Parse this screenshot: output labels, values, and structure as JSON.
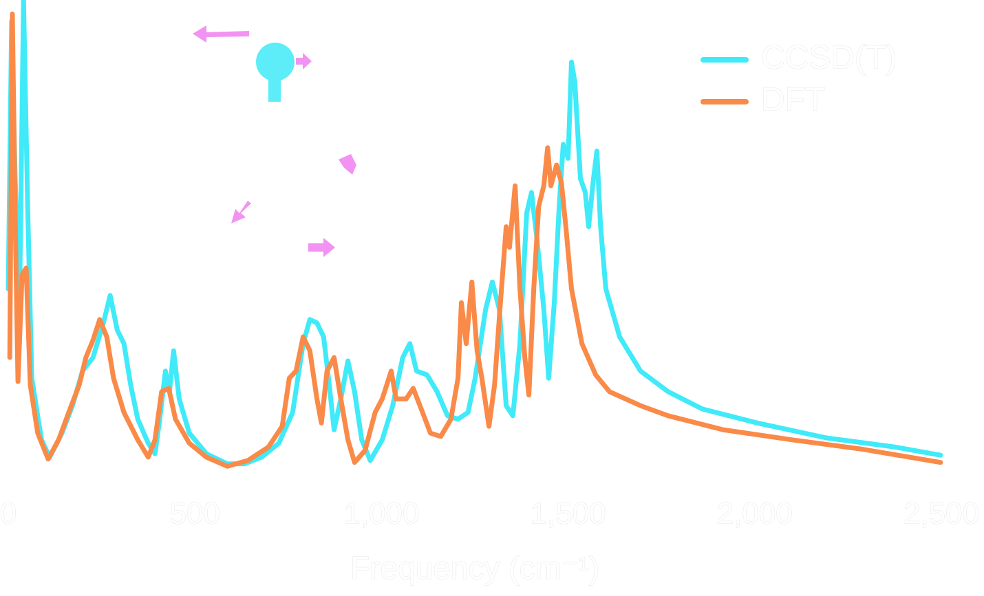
{
  "chart_data": {
    "type": "line",
    "x_label": "Frequency (cm⁻¹)",
    "xlim": [
      0,
      2500
    ],
    "ylim": [
      0,
      100
    ],
    "xticks": [
      0,
      500,
      {
        "value": 1000,
        "label": "1,000"
      },
      {
        "value": 1500,
        "label": "1,500"
      },
      {
        "value": 2000,
        "label": "2,000"
      },
      {
        "value": 2500,
        "label": "2,500"
      }
    ],
    "legend": "upper right",
    "series": [
      {
        "name": "CCSD(T)",
        "color": "#40eaf8",
        "x": [
          0,
          9,
          18,
          30,
          41,
          52,
          63,
          89,
          111,
          144,
          172,
          199,
          227,
          255,
          273,
          292,
          310,
          328,
          347,
          375,
          393,
          406,
          421,
          432,
          443,
          458,
          485,
          531,
          587,
          633,
          679,
          725,
          762,
          790,
          808,
          827,
          845,
          860,
          873,
          891,
          910,
          928,
          947,
          970,
          1002,
          1030,
          1057,
          1076,
          1094,
          1122,
          1149,
          1177,
          1205,
          1232,
          1251,
          1279,
          1297,
          1316,
          1334,
          1352,
          1371,
          1389,
          1402,
          1417,
          1435,
          1448,
          1463,
          1476,
          1487,
          1500,
          1509,
          1518,
          1533,
          1546,
          1555,
          1568,
          1577,
          1587,
          1601,
          1638,
          1694,
          1768,
          1860,
          2007,
          2192,
          2376,
          2498
        ],
        "values": [
          40,
          95.7,
          64.3,
          35.7,
          100,
          57.1,
          21.4,
          8.6,
          5,
          10,
          15.7,
          22.9,
          25.7,
          32.9,
          38.6,
          31.4,
          28.6,
          20,
          12.9,
          7.9,
          5.7,
          12.9,
          22.9,
          18.6,
          27.1,
          17.1,
          10,
          5.7,
          3.6,
          3.6,
          5,
          7.9,
          14.3,
          28.6,
          33.6,
          32.9,
          30,
          20,
          10.7,
          17.1,
          25,
          18.6,
          8.6,
          4.3,
          8.6,
          15.7,
          25.7,
          28.6,
          22.9,
          22.1,
          18.6,
          13.6,
          12.9,
          14.3,
          21.4,
          35.7,
          41.4,
          35.7,
          15.7,
          13.6,
          28.6,
          55.7,
          60,
          50,
          35.7,
          21.4,
          37.1,
          57.1,
          70,
          67.1,
          87.1,
          82.9,
          62.9,
          60,
          52.9,
          62.9,
          68.6,
          52.9,
          40,
          30,
          22.9,
          18.6,
          15,
          12.1,
          9,
          7.1,
          5.4
        ]
      },
      {
        "name": "DFT",
        "color": "#fa8a48",
        "x": [
          4,
          11,
          18,
          26,
          37,
          48,
          59,
          79,
          107,
          135,
          162,
          190,
          208,
          227,
          245,
          264,
          282,
          310,
          347,
          375,
          393,
          411,
          430,
          448,
          485,
          531,
          587,
          642,
          697,
          734,
          753,
          771,
          790,
          808,
          827,
          839,
          854,
          873,
          891,
          910,
          928,
          956,
          983,
          1002,
          1026,
          1039,
          1066,
          1085,
          1103,
          1131,
          1159,
          1186,
          1205,
          1214,
          1227,
          1242,
          1256,
          1269,
          1288,
          1303,
          1316,
          1334,
          1343,
          1358,
          1371,
          1384,
          1395,
          1408,
          1421,
          1435,
          1445,
          1454,
          1469,
          1482,
          1494,
          1509,
          1537,
          1574,
          1611,
          1694,
          1768,
          1915,
          2100,
          2284,
          2498
        ],
        "values": [
          25.7,
          97.1,
          57.1,
          20.7,
          42.9,
          44.3,
          20,
          10,
          4.6,
          8.6,
          14.3,
          20,
          25.7,
          29.3,
          33.6,
          30,
          21.4,
          14.3,
          8.6,
          5,
          8.6,
          18.6,
          19.3,
          12.9,
          7.9,
          5,
          3.1,
          4.3,
          7.1,
          11.4,
          21.4,
          22.9,
          30,
          27.1,
          17.1,
          12.1,
          22.9,
          25.7,
          17.1,
          8.6,
          3.9,
          6.4,
          14.3,
          17.1,
          22.9,
          17.1,
          17.1,
          19.3,
          15.7,
          10,
          9.3,
          12.9,
          21.4,
          37.1,
          28.6,
          41.4,
          27.1,
          21.4,
          11.4,
          20,
          34.3,
          52.9,
          48.6,
          61.4,
          40,
          25.7,
          17.9,
          40,
          57.1,
          61.4,
          69.3,
          61.4,
          65.7,
          62.1,
          52.9,
          40,
          28.6,
          22.1,
          18.6,
          15.7,
          13.6,
          10.7,
          8.6,
          6.7,
          3.9
        ]
      }
    ]
  }
}
